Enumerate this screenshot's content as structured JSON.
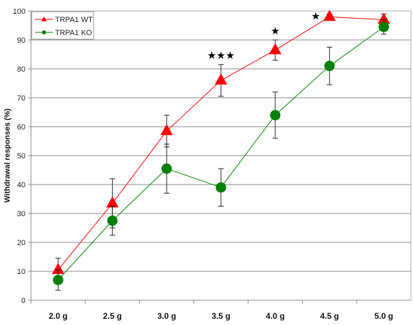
{
  "chart_data": {
    "type": "line",
    "title": "",
    "xlabel": "",
    "ylabel": "Withdrawal responses (%)",
    "categories": [
      "2.0 g",
      "2.5 g",
      "3.0 g",
      "3.5 g",
      "4.0 g",
      "4.5 g",
      "5.0 g"
    ],
    "ylim": [
      0,
      100
    ],
    "yticks": [
      "0",
      "10",
      "20",
      "30",
      "40",
      "50",
      "60",
      "70",
      "80",
      "90",
      "100"
    ],
    "grid": true,
    "legend_position": "top-left",
    "series": [
      {
        "name": "TRPA1 WT",
        "color": "#ff0000",
        "marker": "triangle",
        "values": [
          10.5,
          33.5,
          58.5,
          76,
          86.5,
          98,
          97
        ],
        "errors": [
          4,
          8.5,
          5.5,
          5.5,
          3.5,
          1,
          2
        ]
      },
      {
        "name": "TRPA1 KO",
        "color": "#008000",
        "marker": "circle",
        "values": [
          7,
          27.5,
          45.5,
          39,
          64,
          81,
          94.5
        ],
        "errors": [
          3.5,
          5,
          8.5,
          6.5,
          8,
          6.5,
          2.5
        ]
      }
    ],
    "annotations": [
      {
        "category": "3.5 g",
        "text": "★★★"
      },
      {
        "category": "4.0 g",
        "text": "★"
      },
      {
        "category": "4.5 g",
        "text": "★"
      }
    ]
  }
}
